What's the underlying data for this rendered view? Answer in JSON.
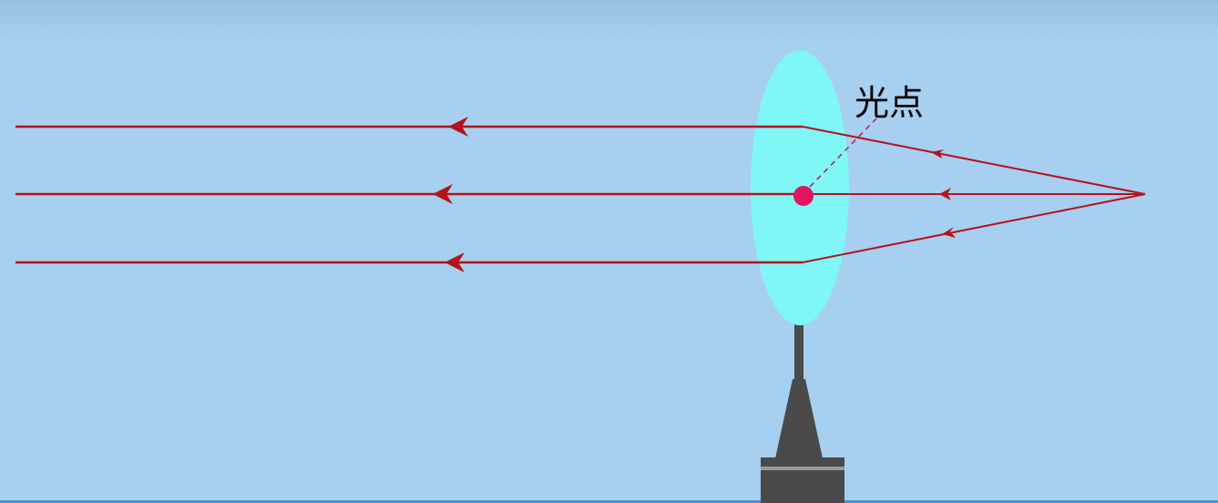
{
  "label": {
    "text": "光点"
  },
  "colors": {
    "background": "#a6cff0",
    "top_band": "#98c1e2",
    "lens_fill": "#7ff7f7",
    "ray": "#b5121b",
    "light_spot": "#e3145e",
    "pointer_line": "#c2185b",
    "stand_dark": "#4a4a4a",
    "stand_stripe": "#9a9a9a",
    "text": "#000000",
    "bottom_edge": "#4f8fd0"
  }
}
